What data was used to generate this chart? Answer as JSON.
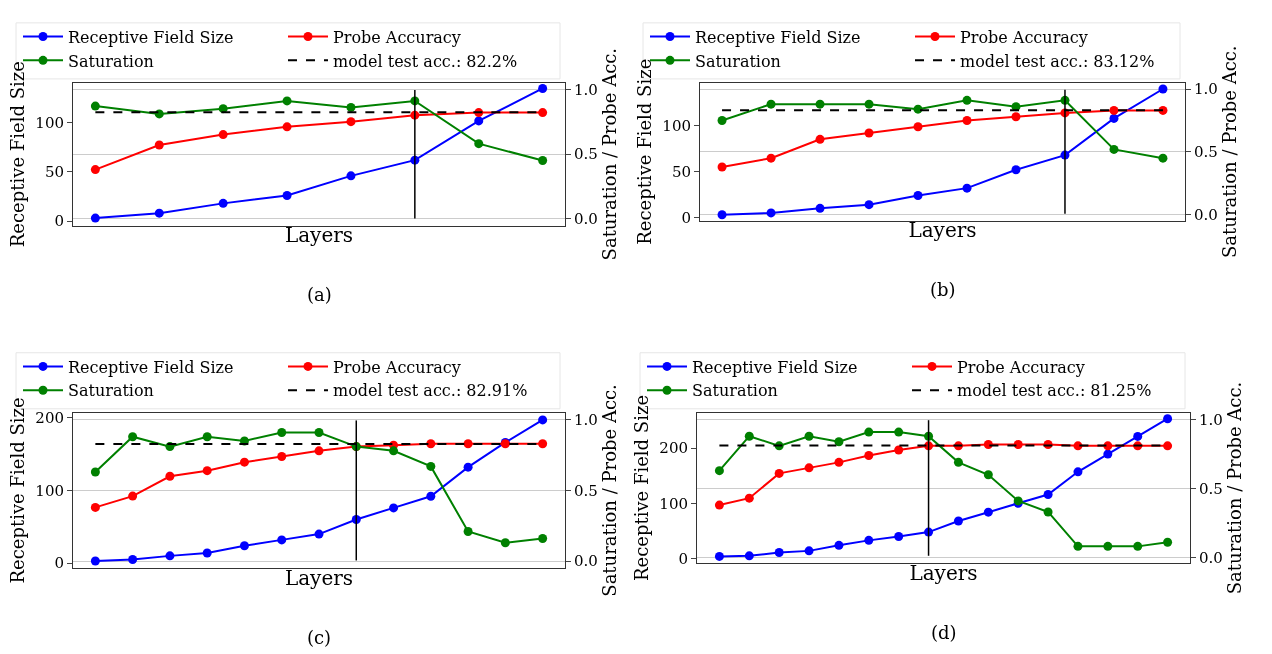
{
  "chart_data": [
    {
      "type": "line",
      "categories": [
        null,
        null,
        null,
        null,
        null,
        null,
        null,
        null
      ],
      "ylim": [
        -4.6,
        140.8
      ],
      "yticks": [
        0,
        50,
        100
      ],
      "y2lim": [
        -0.052,
        1.05
      ],
      "y2ticks": [
        {
          "value": 0,
          "label": "0.0"
        },
        {
          "value": 0.5,
          "label": "0.5"
        },
        {
          "value": 1,
          "label": "1.0"
        }
      ],
      "xlabel": "Layers",
      "ylabel": "Receptive Field Size",
      "y2label": "Saturation / Probe Acc.",
      "tick_labels": "y",
      "grid": "y2",
      "legend": "top",
      "marker": "circle",
      "annotations": [
        "(a)"
      ],
      "series": [
        {
          "name": "Receptive Field Size",
          "color": "#0000ff",
          "values": [
            3,
            8,
            18,
            26,
            46,
            62,
            102,
            135
          ]
        },
        {
          "name": "Probe Accuracy",
          "color": "#ff0000",
          "axis": "y2",
          "values": [
            0.38,
            0.57,
            0.65,
            0.71,
            0.75,
            0.8,
            0.82,
            0.82
          ]
        },
        {
          "name": "Saturation",
          "color": "#008000",
          "axis": "y2",
          "values": [
            0.87,
            0.81,
            0.85,
            0.91,
            0.86,
            0.91,
            0.58,
            0.45
          ]
        },
        {
          "name": "model test acc.: 82.2%",
          "color": "#000000",
          "axis": "y2",
          "line_style": "dashed",
          "marker": "none",
          "values": [
            0.822,
            0.822,
            0.822,
            0.822,
            0.822,
            0.822,
            0.822,
            0.822
          ]
        }
      ]
    },
    {
      "type": "line",
      "categories": [
        null,
        null,
        null,
        null,
        null,
        null,
        null,
        null,
        null,
        null
      ],
      "ylim": [
        -3.4,
        146.8
      ],
      "yticks": [
        0,
        50,
        100
      ],
      "y2lim": [
        -0.047,
        1.05
      ],
      "y2ticks": [
        {
          "value": 0,
          "label": "0.0"
        },
        {
          "value": 0.5,
          "label": "0.5"
        },
        {
          "value": 1,
          "label": "1.0"
        }
      ],
      "xlabel": "Layers",
      "ylabel": "Receptive Field Size",
      "y2label": "Saturation / Probe Acc.",
      "tick_labels": "y",
      "grid": "y2",
      "legend": "top",
      "marker": "circle",
      "annotations": [
        "(b)"
      ],
      "series": [
        {
          "name": "Receptive Field Size",
          "color": "#0000ff",
          "values": [
            3,
            5,
            10,
            14,
            24,
            32,
            52,
            68,
            108,
            140
          ]
        },
        {
          "name": "Probe Accuracy",
          "color": "#ff0000",
          "axis": "y2",
          "values": [
            0.38,
            0.45,
            0.6,
            0.65,
            0.7,
            0.75,
            0.78,
            0.81,
            0.83,
            0.83
          ]
        },
        {
          "name": "Saturation",
          "color": "#008000",
          "axis": "y2",
          "values": [
            0.75,
            0.88,
            0.88,
            0.88,
            0.84,
            0.91,
            0.86,
            0.91,
            0.52,
            0.45
          ]
        },
        {
          "name": "model test acc.: 83.12%",
          "color": "#000000",
          "axis": "y2",
          "line_style": "dashed",
          "marker": "none",
          "values": [
            0.8312,
            0.8312,
            0.8312,
            0.8312,
            0.8312,
            0.8312,
            0.8312,
            0.8312,
            0.8312,
            0.8312
          ]
        }
      ]
    },
    {
      "type": "line",
      "categories": [
        null,
        null,
        null,
        null,
        null,
        null,
        null,
        null,
        null,
        null,
        null,
        null,
        null
      ],
      "ylim": [
        -7,
        207
      ],
      "yticks": [
        0,
        100,
        200
      ],
      "y2lim": [
        -0.05,
        1.05
      ],
      "y2ticks": [
        {
          "value": 0,
          "label": "0.0"
        },
        {
          "value": 0.5,
          "label": "0.5"
        },
        {
          "value": 1,
          "label": "1.0"
        }
      ],
      "xlabel": "Layers",
      "ylabel": "Receptive Field Size",
      "y2label": "Saturation / Probe Acc.",
      "tick_labels": "y",
      "grid": "y2",
      "legend": "top",
      "marker": "circle",
      "annotations": [
        "(c)"
      ],
      "series": [
        {
          "name": "Receptive Field Size",
          "color": "#0000ff",
          "values": [
            3,
            5,
            10,
            14,
            24,
            32,
            40,
            60,
            76,
            92,
            132,
            166,
            197
          ]
        },
        {
          "name": "Probe Accuracy",
          "color": "#ff0000",
          "axis": "y2",
          "values": [
            0.38,
            0.46,
            0.6,
            0.64,
            0.7,
            0.74,
            0.78,
            0.81,
            0.82,
            0.83,
            0.83,
            0.83,
            0.83
          ]
        },
        {
          "name": "Saturation",
          "color": "#008000",
          "axis": "y2",
          "values": [
            0.63,
            0.88,
            0.81,
            0.88,
            0.85,
            0.91,
            0.91,
            0.81,
            0.78,
            0.67,
            0.21,
            0.13,
            0.16
          ]
        },
        {
          "name": "model test acc.: 82.91%",
          "color": "#000000",
          "axis": "y2",
          "line_style": "dashed",
          "marker": "none",
          "values": [
            0.8291,
            0.8291,
            0.8291,
            0.8291,
            0.8291,
            0.8291,
            0.8291,
            0.8291,
            0.8291,
            0.8291,
            0.8291,
            0.8291,
            0.8291
          ]
        }
      ]
    },
    {
      "type": "line",
      "categories": [
        null,
        null,
        null,
        null,
        null,
        null,
        null,
        null,
        null,
        null,
        null,
        null,
        null,
        null,
        null,
        null
      ],
      "ylim": [
        -8.5,
        264
      ],
      "yticks": [
        0,
        100,
        200
      ],
      "y2lim": [
        -0.043,
        1.051
      ],
      "y2ticks": [
        {
          "value": 0,
          "label": "0.0"
        },
        {
          "value": 0.5,
          "label": "0.5"
        },
        {
          "value": 1,
          "label": "1.0"
        }
      ],
      "xlabel": "Layers",
      "ylabel": "Receptive Field Size",
      "y2label": "Saturation / Probe Acc.",
      "tick_labels": "y",
      "grid": "y2",
      "legend": "top",
      "marker": "circle",
      "annotations": [
        "(d)"
      ],
      "series": [
        {
          "name": "Receptive Field Size",
          "color": "#0000ff",
          "values": [
            4,
            5,
            11,
            14,
            24,
            33,
            40,
            48,
            68,
            84,
            100,
            116,
            157,
            189,
            221,
            253
          ]
        },
        {
          "name": "Probe Accuracy",
          "color": "#ff0000",
          "axis": "y2",
          "values": [
            0.38,
            0.43,
            0.61,
            0.65,
            0.69,
            0.74,
            0.78,
            0.81,
            0.81,
            0.82,
            0.82,
            0.82,
            0.81,
            0.81,
            0.81,
            0.81
          ]
        },
        {
          "name": "Saturation",
          "color": "#008000",
          "axis": "y2",
          "values": [
            0.63,
            0.88,
            0.81,
            0.88,
            0.84,
            0.91,
            0.91,
            0.88,
            0.69,
            0.6,
            0.41,
            0.33,
            0.08,
            0.08,
            0.08,
            0.11
          ]
        },
        {
          "name": "model test acc.: 81.25%",
          "color": "#000000",
          "axis": "y2",
          "line_style": "dashed",
          "marker": "none",
          "values": [
            0.8125,
            0.8125,
            0.8125,
            0.8125,
            0.8125,
            0.8125,
            0.8125,
            0.8125,
            0.8125,
            0.8125,
            0.8125,
            0.8125,
            0.8125,
            0.8125,
            0.8125,
            0.8125
          ]
        }
      ]
    }
  ]
}
